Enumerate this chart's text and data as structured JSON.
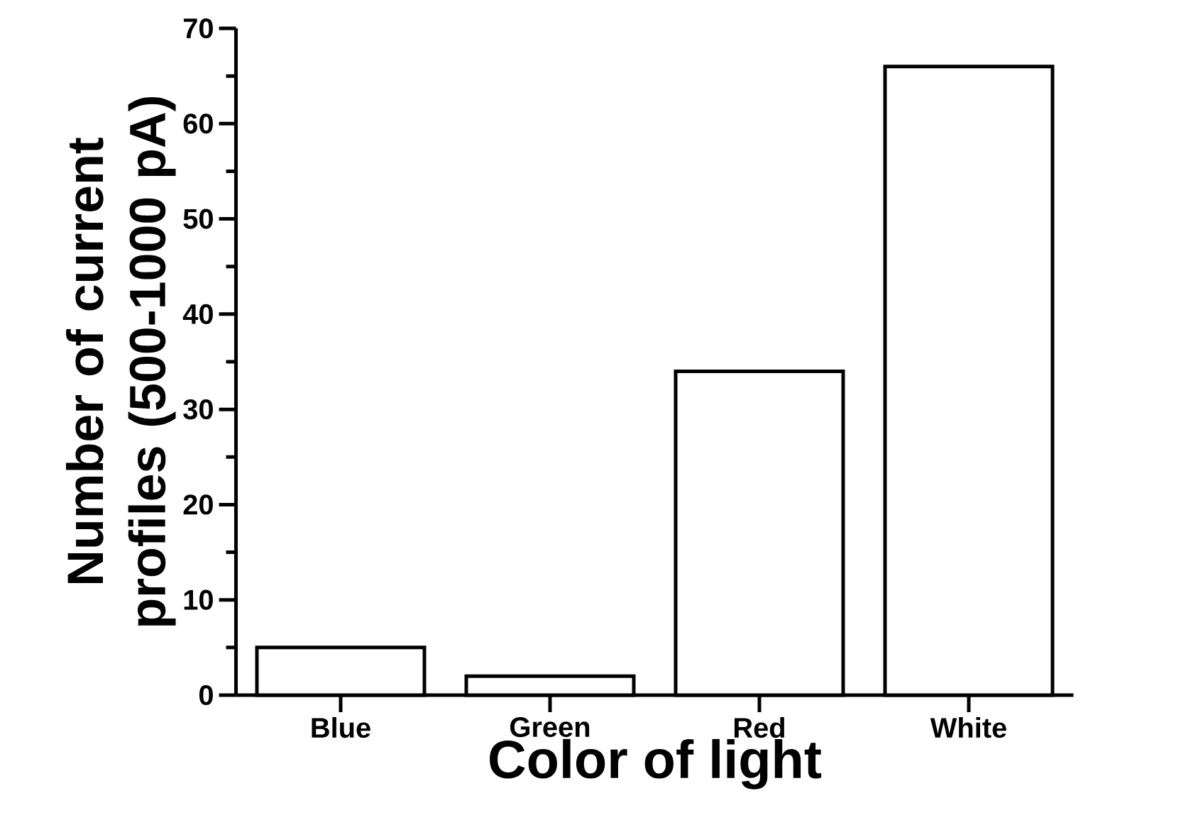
{
  "chart_data": {
    "type": "bar",
    "xlabel": "Color of light",
    "ylabel": "Number of current profiles (500-1000 pA)",
    "categories": [
      "Blue",
      "Green",
      "Red",
      "White"
    ],
    "values": [
      5,
      2,
      34,
      66
    ],
    "color": "#ffffff",
    "ylim": [
      0,
      70
    ],
    "yticks": [
      0,
      10,
      20,
      30,
      40,
      50,
      60,
      70
    ],
    "grid": false
  }
}
